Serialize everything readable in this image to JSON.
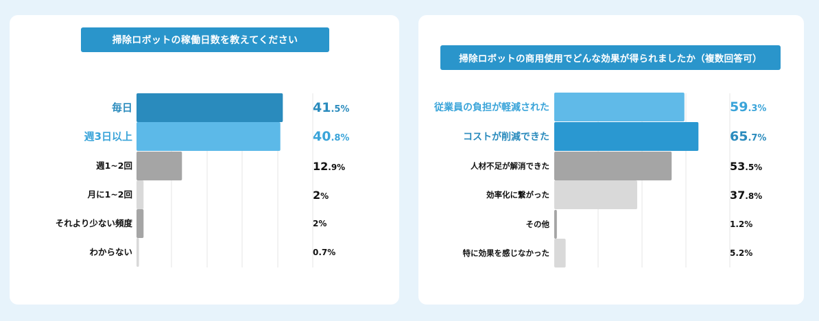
{
  "chart_data": [
    {
      "type": "bar",
      "orientation": "horizontal",
      "title": "掃除ロボットの稼働日数を教えてください",
      "categories": [
        "毎日",
        "週3日以上",
        "週1~2回",
        "月に1~2回",
        "それより少ない頻度",
        "わからない"
      ],
      "values": [
        41.5,
        40.8,
        12.9,
        2,
        2,
        0.7
      ],
      "value_labels": [
        {
          "num": "41",
          "dec": ".5%"
        },
        {
          "num": "40",
          "dec": ".8%"
        },
        {
          "num": "12",
          "dec": ".9%"
        },
        {
          "num": "2",
          "dec": "%"
        },
        {
          "num": "",
          "dec": "2%"
        },
        {
          "num": "",
          "dec": "0.7%"
        }
      ],
      "colors": [
        "#2a8bbd",
        "#5cb9e8",
        "#a5a5a5",
        "#d9d9d9",
        "#a5a5a5",
        "#d9d9d9"
      ],
      "label_colors": [
        "#2a8bbd",
        "#3aa4d9",
        "#111111",
        "#111111",
        "#111111",
        "#111111"
      ],
      "xlim": [
        0,
        50
      ],
      "grid": true
    },
    {
      "type": "bar",
      "orientation": "horizontal",
      "title": "掃除ロボットの商用使用でどんな効果が得られましたか（複数回答可）",
      "categories": [
        "従業員の負担が軽減された",
        "コストが削減できた",
        "人材不足が解消できた",
        "効率化に繋がった",
        "その他",
        "特に効果を感じなかった"
      ],
      "values": [
        59.3,
        65.7,
        53.5,
        37.8,
        1.2,
        5.2
      ],
      "value_labels": [
        {
          "num": "59",
          "dec": ".3%"
        },
        {
          "num": "65",
          "dec": ".7%"
        },
        {
          "num": "53",
          "dec": ".5%"
        },
        {
          "num": "37",
          "dec": ".8%"
        },
        {
          "num": "",
          "dec": "1.2%"
        },
        {
          "num": "",
          "dec": "5.2%"
        }
      ],
      "colors": [
        "#60bae8",
        "#2a98d1",
        "#a5a5a5",
        "#d9d9d9",
        "#a5a5a5",
        "#d9d9d9"
      ],
      "label_colors": [
        "#3aa4d9",
        "#2a8bbd",
        "#111111",
        "#111111",
        "#111111",
        "#111111"
      ],
      "xlim": [
        0,
        80
      ],
      "grid": true
    }
  ]
}
